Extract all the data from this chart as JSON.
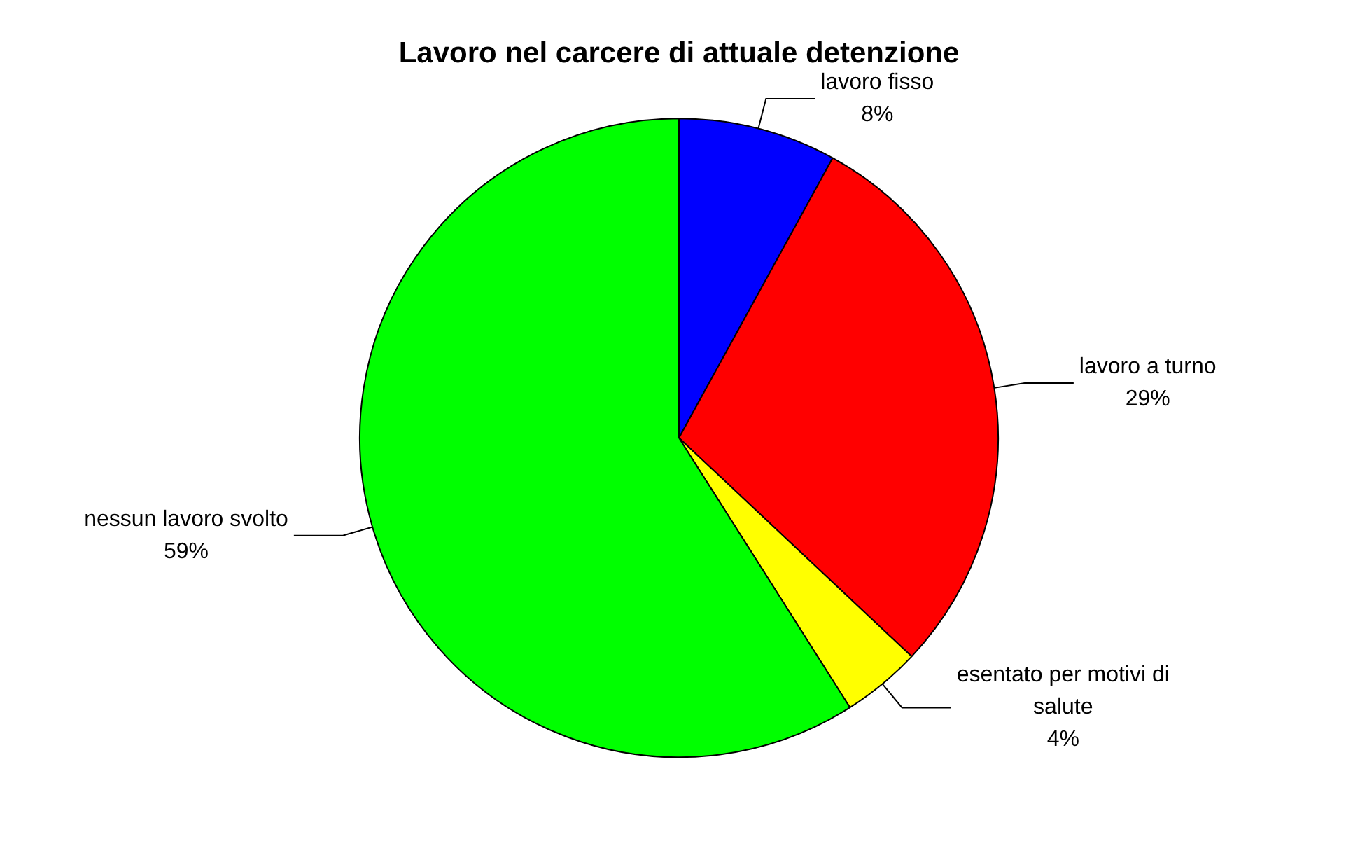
{
  "chart_data": {
    "type": "pie",
    "title": "Lavoro nel carcere di attuale detenzione",
    "categories": [
      "lavoro fisso",
      "lavoro a turno",
      "esentato per motivi di salute",
      "nessun lavoro svolto"
    ],
    "values": [
      8,
      29,
      4,
      59
    ],
    "colors": [
      "#0000ff",
      "#ff0000",
      "#ffff00",
      "#00ff00"
    ],
    "value_labels": [
      "8%",
      "29%",
      "4%",
      "59%"
    ],
    "legend": false
  }
}
